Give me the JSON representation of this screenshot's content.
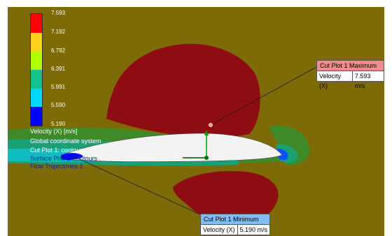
{
  "legend": {
    "ticks": [
      "7.593",
      "7.192",
      "6.792",
      "6.391",
      "5.991",
      "5.590",
      "5.190"
    ],
    "title": "Velocity (X) [m/s]",
    "colors": [
      "#ff0000",
      "#ffd21e",
      "#b3ff00",
      "#16c28b",
      "#00d9ff",
      "#0000ff"
    ]
  },
  "overlay": {
    "items": [
      "Global coordinate system",
      "Cut Plot 1: contours",
      "Surface Plot 1: contours",
      "Flow Trajectories 1"
    ]
  },
  "callouts": {
    "max": {
      "title": "Cut Plot 1 Maximum",
      "label": "Velocity (X)",
      "value": "7.593 m/s",
      "color": "#f48b8b"
    },
    "min": {
      "title": "Cut Plot 1 Minimum",
      "label": "Velocity (X)",
      "value": "5.190 m/s",
      "color": "#7fbef5"
    }
  },
  "colors": {
    "background_field": "#7d6b08",
    "high_velocity_region": "#8e0d12",
    "airfoil": "#f3f3f3"
  }
}
